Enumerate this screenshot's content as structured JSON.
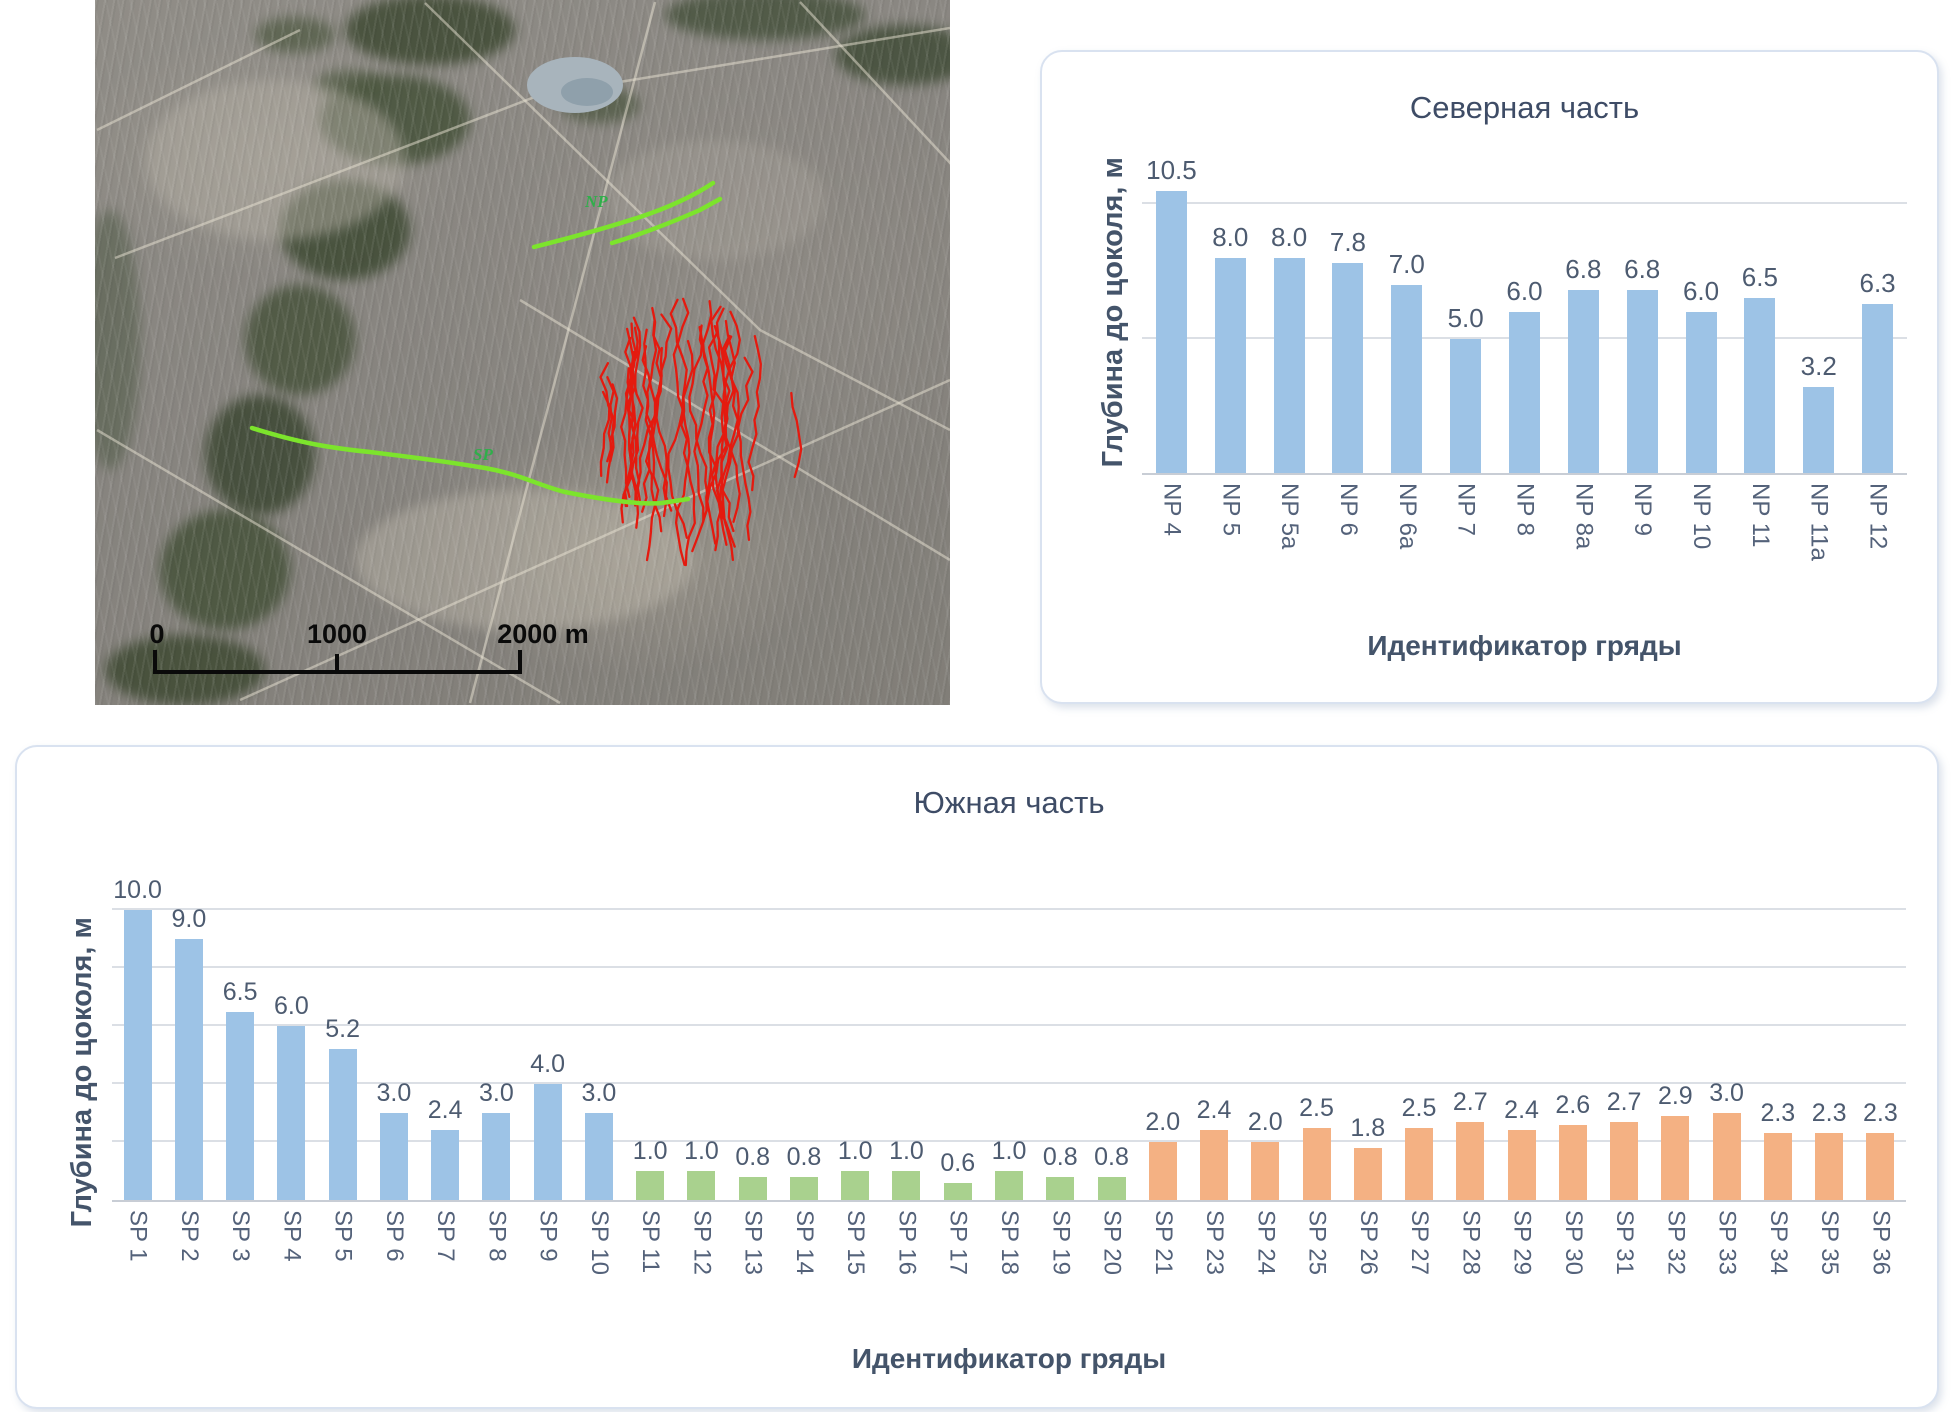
{
  "map": {
    "annotations": {
      "np_line_label": "NP",
      "sp_line_label": "SP"
    },
    "scale_bar": {
      "labels": [
        "0",
        "1000",
        "2000 m"
      ]
    },
    "overlay_colors": {
      "ridge_survey_lines": "#7CE42C",
      "annotation_text": "#2FAF4A",
      "mapped_dune_crests": "#E41A0F"
    }
  },
  "chart_data": [
    {
      "type": "bar",
      "title": "Северная часть",
      "xlabel": "Идентификатор гряды",
      "ylabel": "Глубина до цоколя, м",
      "categories": [
        "NP 4",
        "NP 5",
        "NP 5a",
        "NP 6",
        "NP 6a",
        "NP 7",
        "NP 8",
        "NP 8a",
        "NP 9",
        "NP 10",
        "NP 11",
        "NP 11a",
        "NP 12"
      ],
      "values": [
        10.5,
        8.0,
        8.0,
        7.8,
        7.0,
        5.0,
        6.0,
        6.8,
        6.8,
        6.0,
        6.5,
        3.2,
        6.3
      ],
      "bar_color": "#9DC3E6",
      "data_labels": true,
      "legend": "none",
      "grid": true,
      "gridline_values": [
        5,
        10
      ],
      "ylim": [
        0,
        12
      ]
    },
    {
      "type": "bar",
      "title": "Южная часть",
      "xlabel": "Идентификатор гряды",
      "ylabel": "Глубина до цоколя, м",
      "categories": [
        "SP 1",
        "SP 2",
        "SP 3",
        "SP 4",
        "SP 5",
        "SP 6",
        "SP 7",
        "SP 8",
        "SP 9",
        "SP 10",
        "SP 11",
        "SP 12",
        "SP 13",
        "SP 14",
        "SP 15",
        "SP 16",
        "SP 17",
        "SP 18",
        "SP 19",
        "SP 20",
        "SP 21",
        "SP 23",
        "SP 24",
        "SP 25",
        "SP 26",
        "SP 27",
        "SP 28",
        "SP 29",
        "SP 30",
        "SP 31",
        "SP 32",
        "SP 33",
        "SP 34",
        "SP 35",
        "SP 36"
      ],
      "values": [
        10.0,
        9.0,
        6.5,
        6.0,
        5.2,
        3.0,
        2.4,
        3.0,
        4.0,
        3.0,
        1.0,
        1.0,
        0.8,
        0.8,
        1.0,
        1.0,
        0.6,
        1.0,
        0.8,
        0.8,
        2.0,
        2.4,
        2.0,
        2.5,
        1.8,
        2.5,
        2.7,
        2.4,
        2.6,
        2.7,
        2.9,
        3.0,
        2.3,
        2.3,
        2.3
      ],
      "segments": [
        {
          "from": 0,
          "to": 9,
          "color": "#9DC3E6"
        },
        {
          "from": 10,
          "to": 19,
          "color": "#A9D18E"
        },
        {
          "from": 20,
          "to": 34,
          "color": "#F4B183"
        }
      ],
      "data_labels": true,
      "legend": "none",
      "grid": true,
      "gridline_values": [
        2,
        4,
        6,
        8,
        10
      ],
      "ylim": [
        0,
        11.4
      ]
    }
  ]
}
